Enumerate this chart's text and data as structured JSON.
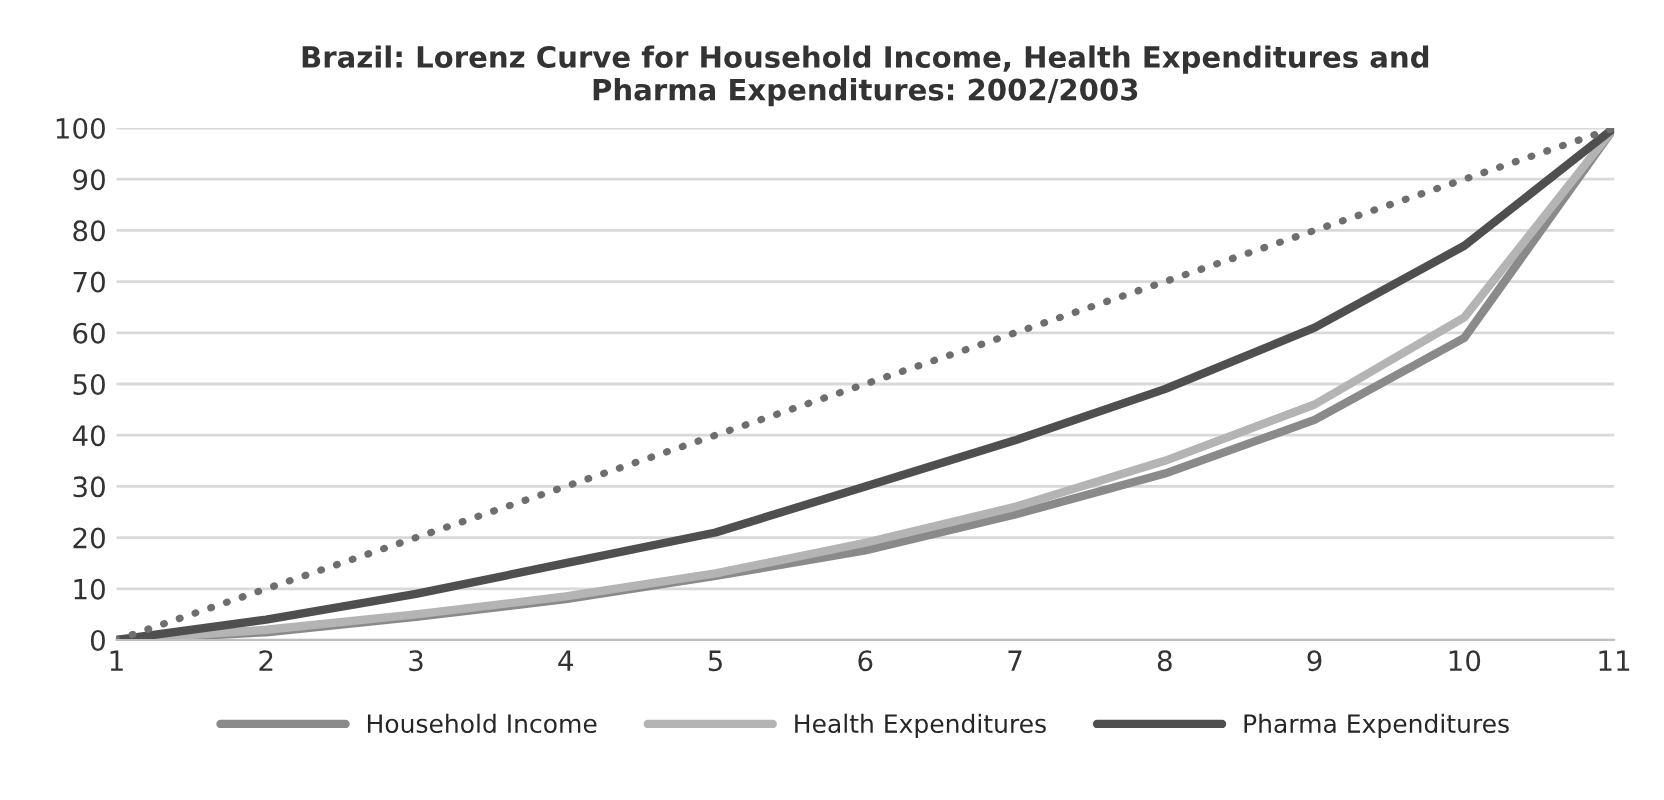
{
  "chart_data": {
    "type": "line",
    "title": "Brazil: Lorenz Curve for Household Income, Health Expenditures and\nPharma Expenditures: 2002/2003",
    "x": [
      1,
      2,
      3,
      4,
      5,
      6,
      7,
      8,
      9,
      10,
      11
    ],
    "series": [
      {
        "name": "Household Income",
        "color": "#8a8a8a",
        "values": [
          0,
          1.5,
          4.5,
          8,
          12.5,
          17.5,
          24.5,
          32.5,
          43,
          59,
          100
        ]
      },
      {
        "name": "Health Expenditures",
        "color": "#b4b4b4",
        "values": [
          0,
          2,
          5,
          8.5,
          13,
          19,
          26,
          35,
          46,
          63,
          100
        ]
      },
      {
        "name": "Pharma Expenditures",
        "color": "#4f4f4f",
        "values": [
          0,
          4,
          9,
          15,
          21,
          30,
          39,
          49,
          61,
          77,
          100
        ]
      },
      {
        "color": "#6e6e6e",
        "line_style": "dotted",
        "values": [
          0,
          10,
          20,
          30,
          40,
          50,
          60,
          70,
          80,
          90,
          100
        ]
      }
    ],
    "xlim": [
      1,
      11
    ],
    "xticks": [
      1,
      2,
      3,
      4,
      5,
      6,
      7,
      8,
      9,
      10,
      11
    ],
    "ylim": [
      0,
      100
    ],
    "yticks": [
      0,
      10,
      20,
      30,
      40,
      50,
      60,
      70,
      80,
      90,
      100
    ],
    "grid": "y",
    "legend": "bottom",
    "marker": "none",
    "line_style": "solid"
  }
}
